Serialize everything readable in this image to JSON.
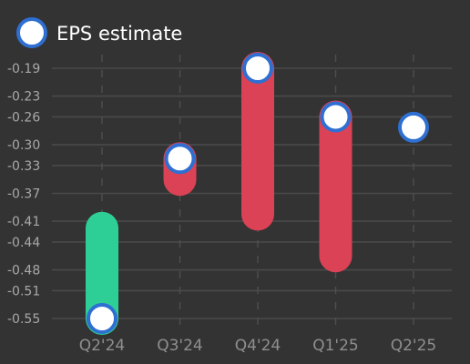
{
  "chart_data": {
    "type": "bar",
    "legend": {
      "label": "EPS estimate",
      "position": "top-left"
    },
    "categories": [
      "Q2'24",
      "Q3'24",
      "Q4'24",
      "Q1'25",
      "Q2'25"
    ],
    "estimate": [
      -0.55,
      -0.32,
      -0.19,
      -0.26,
      -0.275
    ],
    "actual": [
      -0.42,
      -0.35,
      -0.4,
      -0.46,
      null
    ],
    "y_ticks": [
      -0.19,
      -0.23,
      -0.26,
      -0.3,
      -0.33,
      -0.37,
      -0.41,
      -0.44,
      -0.48,
      -0.51,
      -0.55
    ],
    "ylim": [
      -0.55,
      -0.19
    ],
    "grid": {
      "horizontal": true,
      "vertical": "dashed"
    },
    "colors": {
      "beat": "#2ecf96",
      "miss": "#db4256",
      "marker_fill": "#ffffff",
      "marker_stroke": "#2e6fd1",
      "background": "#333333"
    }
  }
}
